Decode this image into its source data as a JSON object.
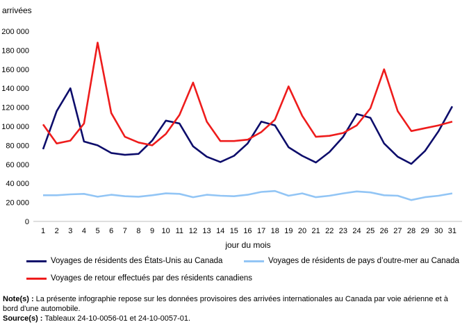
{
  "chart_data": {
    "type": "line",
    "ylabel": "arrivées",
    "xlabel": "jour du mois",
    "ylim": [
      0,
      200000
    ],
    "ytick_step": 20000,
    "ytick_labels": [
      "0",
      "20 000",
      "40 000",
      "60 000",
      "80 000",
      "100 000",
      "120 000",
      "140 000",
      "160 000",
      "180 000",
      "200 000"
    ],
    "x": [
      1,
      2,
      3,
      4,
      5,
      6,
      7,
      8,
      9,
      10,
      11,
      12,
      13,
      14,
      15,
      16,
      17,
      18,
      19,
      20,
      21,
      22,
      23,
      24,
      25,
      26,
      27,
      28,
      29,
      30,
      31
    ],
    "grid": false,
    "legend_position": "bottom",
    "series": [
      {
        "name": "Voyages de résidents des États-Unis au Canada",
        "color": "#0d0d6b",
        "values": [
          76000,
          116000,
          140000,
          84000,
          80000,
          72000,
          70000,
          71000,
          85000,
          106000,
          103000,
          79000,
          68000,
          62500,
          69000,
          82000,
          105000,
          101000,
          78000,
          69000,
          62000,
          73000,
          89000,
          113000,
          109000,
          82000,
          68000,
          60500,
          74000,
          95000,
          121000
        ]
      },
      {
        "name": "Voyages de résidents de pays d’outre-mer au Canada",
        "color": "#92c5f5",
        "values": [
          27500,
          27500,
          28500,
          29000,
          26000,
          28000,
          26500,
          26000,
          27500,
          29500,
          29000,
          25500,
          28000,
          27000,
          26500,
          28000,
          31000,
          32000,
          27000,
          29500,
          25500,
          27000,
          29500,
          31500,
          30500,
          27500,
          27000,
          22500,
          25500,
          27000,
          29500
        ]
      },
      {
        "name": "Voyages de retour effectués par des résidents canadiens",
        "color": "#ee1c1c",
        "values": [
          102000,
          82000,
          85000,
          103000,
          188000,
          114000,
          89000,
          83000,
          80000,
          92000,
          112000,
          146000,
          105000,
          84500,
          84500,
          86000,
          94000,
          107000,
          142000,
          111000,
          89000,
          90000,
          93000,
          101000,
          119000,
          160000,
          116000,
          95000,
          98000,
          101000,
          105000
        ]
      }
    ]
  },
  "notes": {
    "note_label": "Note(s) :",
    "note_text": " La présente infographie repose sur les données provisoires des arrivées internationales au Canada par voie aérienne et à bord d'une automobile.",
    "source_label": "Source(s) :",
    "source_text": " Tableaux 24-10-0056-01 et 24-10-0057-01."
  }
}
